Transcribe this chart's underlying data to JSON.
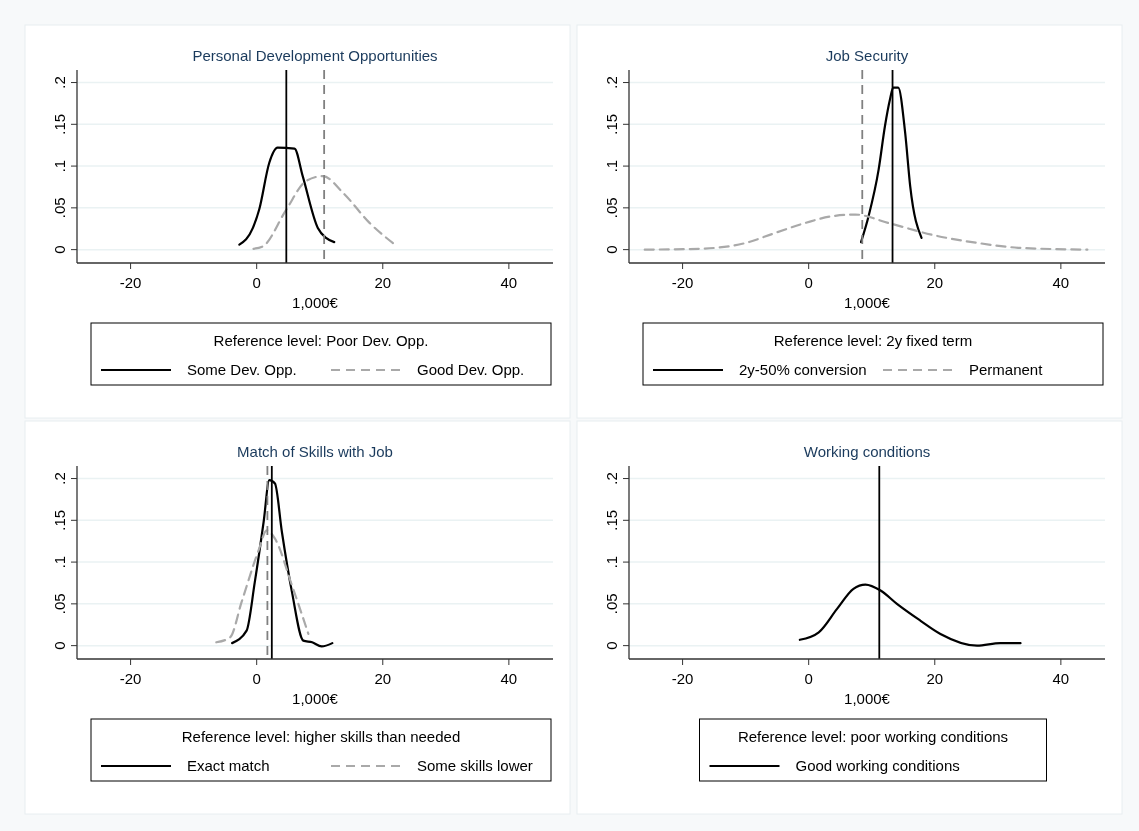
{
  "chart_data": [
    {
      "type": "line",
      "title": "Personal Development Opportunities",
      "xlabel": "1,000€",
      "legend_title": "Reference level: Poor Dev. Opp.",
      "legend": "bottom",
      "grid": "y",
      "xlim": [
        -28.5,
        47
      ],
      "ylim": [
        -0.016,
        0.215
      ],
      "xticks": [
        -20,
        0,
        20,
        40
      ],
      "yticks": [
        {
          "value": 0,
          "label": "0"
        },
        {
          "value": 0.05,
          "label": ".05"
        },
        {
          "value": 0.1,
          "label": ".1"
        },
        {
          "value": 0.15,
          "label": ".15"
        },
        {
          "value": 0.2,
          "label": ".2"
        }
      ],
      "series": [
        {
          "name": "Some Dev. Opp.",
          "color": "#000000",
          "line_style": "solid",
          "x": [
            -2.75,
            -0.6,
            0.4,
            2.0,
            3.3,
            6.0,
            7.3,
            9.7,
            11.0,
            12.3
          ],
          "values": [
            0.006,
            0.026,
            0.048,
            0.104,
            0.122,
            0.121,
            0.088,
            0.026,
            0.014,
            0.009
          ]
        },
        {
          "name": "Good Dev. Opp.",
          "color": "#a9a9a9",
          "line_style": "dashed",
          "x": [
            -0.5,
            1.0,
            4.7,
            7.8,
            10.5,
            13.7,
            17.9,
            22.1
          ],
          "values": [
            0.001,
            0.004,
            0.048,
            0.082,
            0.088,
            0.068,
            0.032,
            0.005
          ]
        }
      ],
      "ref_lines": [
        {
          "axis": "x",
          "value": 4.7,
          "color": "#000000",
          "line_style": "solid"
        },
        {
          "axis": "x",
          "value": 10.7,
          "color": "#808080",
          "line_style": "dashed"
        }
      ]
    },
    {
      "type": "line",
      "title": "Job Security",
      "xlabel": "1,000€",
      "legend_title": "Reference level: 2y fixed term",
      "legend": "bottom",
      "grid": "y",
      "xlim": [
        -28.5,
        47
      ],
      "ylim": [
        -0.016,
        0.215
      ],
      "xticks": [
        -20,
        0,
        20,
        40
      ],
      "yticks": [
        {
          "value": 0,
          "label": "0"
        },
        {
          "value": 0.05,
          "label": ".05"
        },
        {
          "value": 0.1,
          "label": ".1"
        },
        {
          "value": 0.15,
          "label": ".15"
        },
        {
          "value": 0.2,
          "label": ".2"
        }
      ],
      "series": [
        {
          "name": "2y-50% conversion",
          "color": "#000000",
          "line_style": "solid",
          "x": [
            8.3,
            9.5,
            11.1,
            12.1,
            12.9,
            13.4,
            14.2,
            15.3,
            16.1,
            17.9
          ],
          "values": [
            0.009,
            0.04,
            0.096,
            0.148,
            0.18,
            0.194,
            0.194,
            0.14,
            0.076,
            0.014
          ]
        },
        {
          "name": "Permanent",
          "color": "#a9a9a9",
          "line_style": "dashed",
          "x": [
            -26,
            -17.4,
            -10,
            -5.3,
            -0.5,
            3.7,
            7.4,
            12.6,
            20,
            26.8,
            33.7,
            44.2
          ],
          "values": [
            0,
            0.001,
            0.008,
            0.02,
            0.032,
            0.04,
            0.042,
            0.032,
            0.017,
            0.008,
            0.002,
            0
          ]
        }
      ],
      "ref_lines": [
        {
          "axis": "x",
          "value": 13.3,
          "color": "#000000",
          "line_style": "solid"
        },
        {
          "axis": "x",
          "value": 8.5,
          "color": "#808080",
          "line_style": "dashed"
        }
      ]
    },
    {
      "type": "line",
      "title": "Match of Skills with Job",
      "xlabel": "1,000€",
      "legend_title": "Reference level: higher skills than needed",
      "legend": "bottom",
      "grid": "y",
      "xlim": [
        -28.5,
        47
      ],
      "ylim": [
        -0.016,
        0.215
      ],
      "xticks": [
        -20,
        0,
        20,
        40
      ],
      "yticks": [
        {
          "value": 0,
          "label": "0"
        },
        {
          "value": 0.05,
          "label": ".05"
        },
        {
          "value": 0.1,
          "label": ".1"
        },
        {
          "value": 0.15,
          "label": ".15"
        },
        {
          "value": 0.2,
          "label": ".2"
        }
      ],
      "series": [
        {
          "name": "Exact match",
          "color": "#000000",
          "line_style": "solid",
          "x": [
            -3.9,
            -1.6,
            -0.3,
            1.1,
            2.0,
            2.9,
            4.0,
            5.6,
            7.4,
            8.8,
            10.3,
            12.0
          ],
          "values": [
            0.003,
            0.018,
            0.076,
            0.148,
            0.198,
            0.194,
            0.136,
            0.064,
            0.006,
            0.004,
            -0.001,
            0.003
          ]
        },
        {
          "name": "Some skills lower",
          "color": "#a9a9a9",
          "line_style": "dashed",
          "x": [
            -6.4,
            -4.2,
            -2.4,
            0.3,
            1.6,
            2.9,
            5.6,
            8.2
          ],
          "values": [
            0.004,
            0.01,
            0.052,
            0.114,
            0.138,
            0.128,
            0.072,
            0.014
          ]
        }
      ],
      "ref_lines": [
        {
          "axis": "x",
          "value": 2.4,
          "color": "#000000",
          "line_style": "solid"
        },
        {
          "axis": "x",
          "value": 1.7,
          "color": "#808080",
          "line_style": "dashed"
        }
      ]
    },
    {
      "type": "line",
      "title": "Working conditions",
      "xlabel": "1,000€",
      "legend_title": "Reference level: poor working conditions",
      "legend": "bottom",
      "grid": "y",
      "xlim": [
        -28.5,
        47
      ],
      "ylim": [
        -0.016,
        0.215
      ],
      "xticks": [
        -20,
        0,
        20,
        40
      ],
      "yticks": [
        {
          "value": 0,
          "label": "0"
        },
        {
          "value": 0.05,
          "label": ".05"
        },
        {
          "value": 0.1,
          "label": ".1"
        },
        {
          "value": 0.15,
          "label": ".15"
        },
        {
          "value": 0.2,
          "label": ".2"
        }
      ],
      "series": [
        {
          "name": "Good working conditions",
          "color": "#000000",
          "line_style": "solid",
          "x": [
            -1.4,
            1.6,
            4.5,
            7.1,
            9.0,
            11.4,
            14.0,
            17.7,
            20.9,
            26.7,
            30.4,
            33.6
          ],
          "values": [
            0.007,
            0.016,
            0.044,
            0.068,
            0.073,
            0.066,
            0.05,
            0.03,
            0.014,
            0,
            0.003,
            0.003
          ]
        }
      ],
      "ref_lines": [
        {
          "axis": "x",
          "value": 11.2,
          "color": "#000000",
          "line_style": "solid"
        }
      ]
    }
  ]
}
